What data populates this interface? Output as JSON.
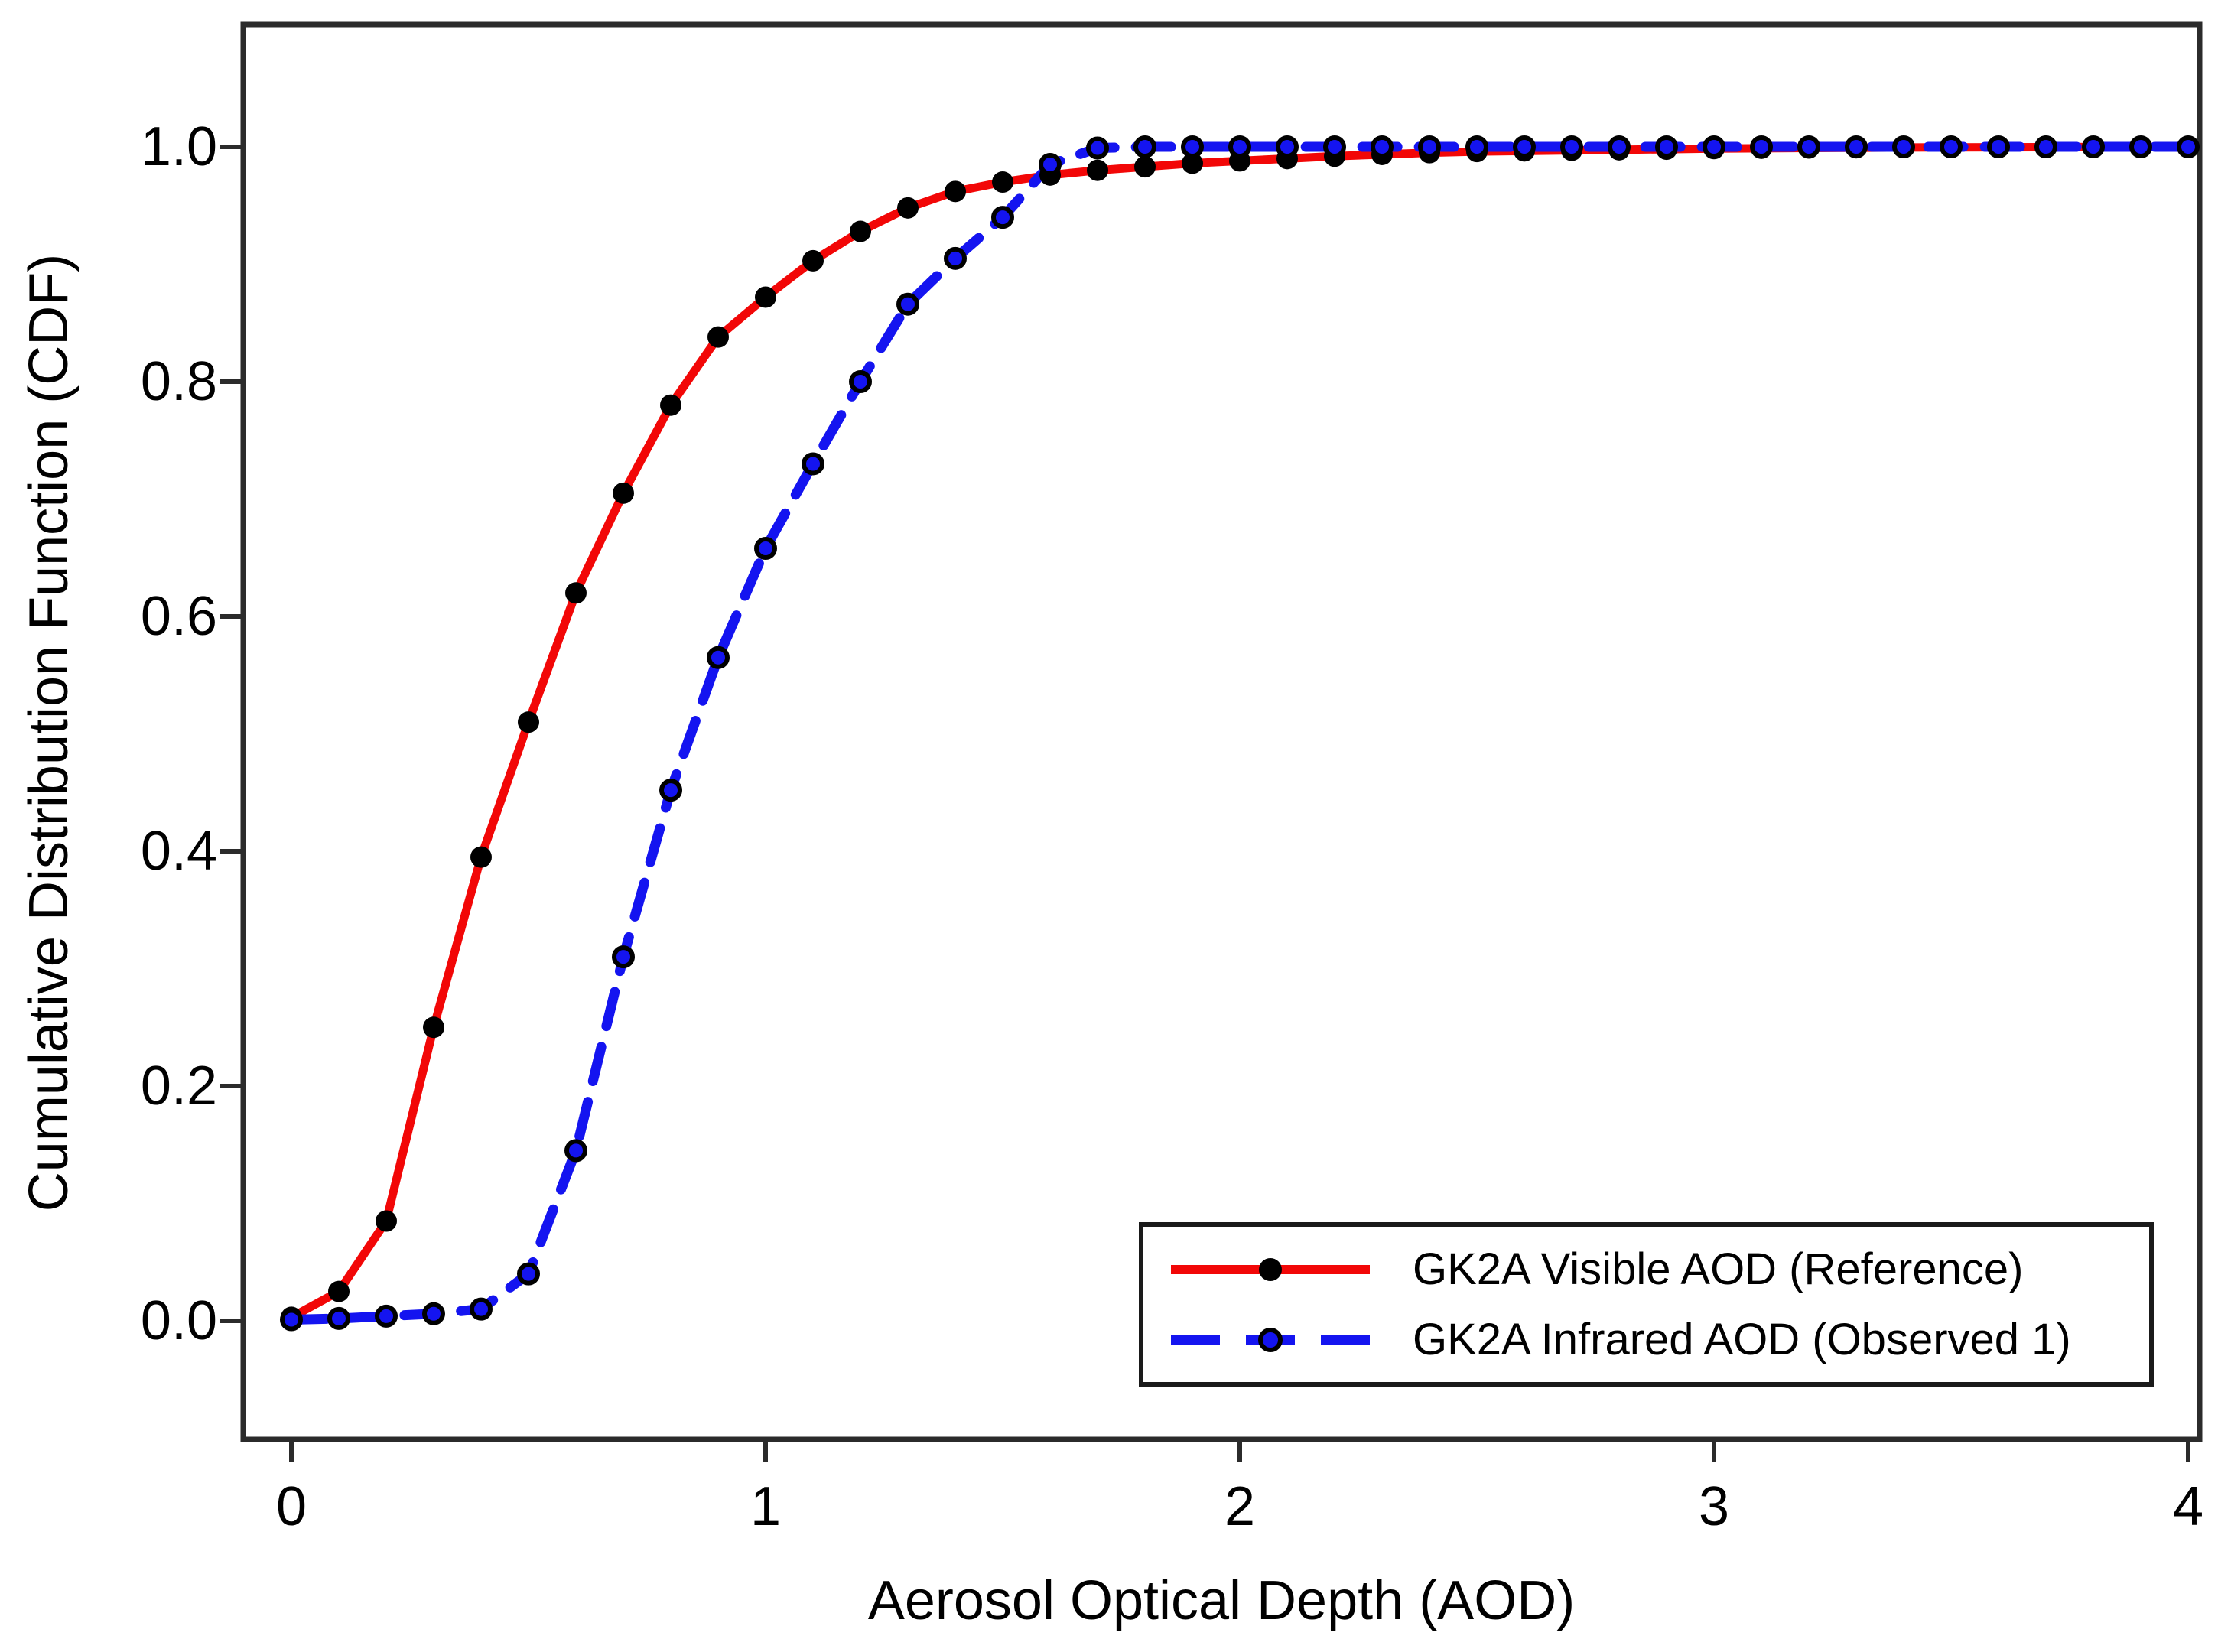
{
  "figure": {
    "background": "#ffffff",
    "frame_color": "#2b2b2b"
  },
  "axes": {
    "x": {
      "title": "Aerosol Optical Depth (AOD)",
      "ticks": [
        "0",
        "1",
        "2",
        "3",
        "4"
      ],
      "tick_values": [
        0,
        1,
        2,
        3,
        4
      ],
      "range": [
        0,
        4
      ]
    },
    "y": {
      "title": "Cumulative Distribution Function (CDF)",
      "ticks": [
        "0.0",
        "0.2",
        "0.4",
        "0.6",
        "0.8",
        "1.0"
      ],
      "tick_values": [
        0,
        0.2,
        0.4,
        0.6,
        0.8,
        1.0
      ],
      "range": [
        0,
        1.05
      ]
    }
  },
  "legend": {
    "items": [
      {
        "label": "GK2A Visible AOD (Reference)",
        "color": "#f20707",
        "line": "solid",
        "marker": "black-filled-dot"
      },
      {
        "label": "GK2A Infrared AOD (Observed 1)",
        "color": "#1414f0",
        "line": "dashed",
        "marker": "blue-dot-black-ring"
      }
    ]
  },
  "chart_data": {
    "type": "line",
    "title": "",
    "xlabel": "Aerosol Optical Depth (AOD)",
    "ylabel": "Cumulative Distribution Function (CDF)",
    "xlim": [
      0,
      4
    ],
    "ylim": [
      0,
      1.05
    ],
    "grid": false,
    "legend_position": "lower-right",
    "x": [
      0.0,
      0.1,
      0.2,
      0.3,
      0.4,
      0.5,
      0.6,
      0.7,
      0.8,
      0.9,
      1.0,
      1.1,
      1.2,
      1.3,
      1.4,
      1.5,
      1.6,
      1.7,
      1.8,
      1.9,
      2.0,
      2.1,
      2.2,
      2.3,
      2.4,
      2.5,
      2.6,
      2.7,
      2.8,
      2.9,
      3.0,
      3.1,
      3.2,
      3.3,
      3.4,
      3.5,
      3.6,
      3.7,
      3.8,
      3.9,
      4.0
    ],
    "series": [
      {
        "name": "GK2A Visible AOD (Reference)",
        "color": "#f20707",
        "line": "solid",
        "marker_color": "#000000",
        "values": [
          0.003,
          0.025,
          0.085,
          0.25,
          0.395,
          0.51,
          0.62,
          0.705,
          0.78,
          0.838,
          0.872,
          0.903,
          0.928,
          0.948,
          0.962,
          0.97,
          0.976,
          0.98,
          0.983,
          0.986,
          0.988,
          0.99,
          0.992,
          0.9935,
          0.995,
          0.996,
          0.9965,
          0.997,
          0.9975,
          0.998,
          0.9985,
          0.9988,
          0.999,
          0.9992,
          0.9994,
          0.9995,
          0.9996,
          0.9997,
          0.9998,
          0.9999,
          1.0
        ]
      },
      {
        "name": "GK2A Infrared AOD (Observed 1)",
        "color": "#1414f0",
        "line": "dashed",
        "marker_color": "#1414f0",
        "values": [
          0.001,
          0.002,
          0.004,
          0.006,
          0.01,
          0.04,
          0.145,
          0.31,
          0.452,
          0.565,
          0.658,
          0.73,
          0.8,
          0.866,
          0.905,
          0.94,
          0.985,
          0.999,
          1.0,
          1.0,
          1.0,
          1.0,
          1.0,
          1.0,
          1.0,
          1.0,
          1.0,
          1.0,
          1.0,
          1.0,
          1.0,
          1.0,
          1.0,
          1.0,
          1.0,
          1.0,
          1.0,
          1.0,
          1.0,
          1.0,
          1.0
        ]
      }
    ]
  }
}
